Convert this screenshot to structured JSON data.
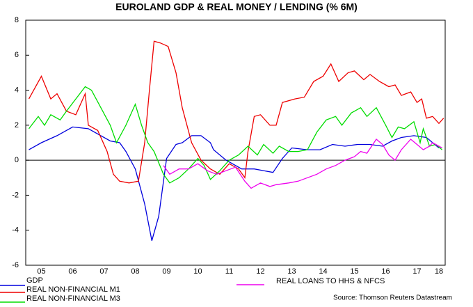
{
  "chart_data": {
    "type": "line",
    "title": "EUROLAND GDP & REAL MONEY / LENDING (% 6M)",
    "source": "Source: Thomson Reuters Datastream",
    "xlim": [
      2005,
      2018.4
    ],
    "xticks": [
      {
        "value": 2005.5,
        "label": "05"
      },
      {
        "value": 2006.5,
        "label": "06"
      },
      {
        "value": 2007.5,
        "label": "07"
      },
      {
        "value": 2008.5,
        "label": "08"
      },
      {
        "value": 2009.5,
        "label": "09"
      },
      {
        "value": 2010.5,
        "label": "10"
      },
      {
        "value": 2011.5,
        "label": "11"
      },
      {
        "value": 2012.5,
        "label": "12"
      },
      {
        "value": 2013.5,
        "label": "13"
      },
      {
        "value": 2014.5,
        "label": "14"
      },
      {
        "value": 2015.5,
        "label": "15"
      },
      {
        "value": 2016.5,
        "label": "16"
      },
      {
        "value": 2017.5,
        "label": "17"
      },
      {
        "value": 2018.2,
        "label": "18"
      }
    ],
    "ylim": [
      -6,
      8
    ],
    "yticks": [
      -6,
      -4,
      -2,
      0,
      2,
      4,
      6,
      8
    ],
    "series": [
      {
        "name": "GDP",
        "color": "#0000dd",
        "x": [
          2005.1,
          2005.5,
          2006.0,
          2006.5,
          2007.0,
          2007.7,
          2008.0,
          2008.2,
          2008.5,
          2008.8,
          2009.03,
          2009.25,
          2009.5,
          2009.8,
          2010.0,
          2010.3,
          2010.6,
          2010.9,
          2011.0,
          2011.4,
          2011.9,
          2012.3,
          2012.9,
          2013.2,
          2013.5,
          2014.0,
          2014.4,
          2014.8,
          2015.2,
          2015.6,
          2016.0,
          2016.4,
          2016.7,
          2017.0,
          2017.4,
          2017.8,
          2018.0,
          2018.2
        ],
        "values": [
          0.6,
          1.0,
          1.4,
          1.9,
          1.8,
          1.1,
          1.0,
          0.5,
          -0.5,
          -2.5,
          -4.6,
          -3.2,
          0.1,
          0.9,
          1.0,
          1.4,
          1.4,
          1.0,
          0.6,
          0.0,
          -0.5,
          -0.5,
          -0.7,
          0.1,
          0.7,
          0.6,
          0.6,
          0.9,
          0.8,
          0.9,
          0.9,
          0.8,
          1.1,
          1.3,
          1.4,
          1.3,
          1.0,
          0.7
        ]
      },
      {
        "name": "REAL NON-FINANCIAL M1",
        "color": "#ee0000",
        "x": [
          2005.1,
          2005.5,
          2005.8,
          2006.0,
          2006.3,
          2006.6,
          2006.9,
          2007.0,
          2007.3,
          2007.6,
          2007.8,
          2008.0,
          2008.3,
          2008.6,
          2008.8,
          2008.95,
          2009.1,
          2009.3,
          2009.55,
          2009.8,
          2010.0,
          2010.3,
          2010.6,
          2010.9,
          2011.2,
          2011.5,
          2011.8,
          2012.0,
          2012.1,
          2012.3,
          2012.5,
          2012.8,
          2013.0,
          2013.2,
          2013.6,
          2013.9,
          2014.2,
          2014.5,
          2014.75,
          2015.0,
          2015.3,
          2015.5,
          2015.8,
          2016.0,
          2016.3,
          2016.6,
          2016.8,
          2017.0,
          2017.3,
          2017.5,
          2017.65,
          2017.8,
          2018.0,
          2018.2,
          2018.35
        ],
        "values": [
          3.5,
          4.8,
          3.5,
          3.8,
          2.8,
          2.6,
          3.8,
          2.0,
          1.7,
          0.5,
          -0.8,
          -1.2,
          -1.3,
          -1.2,
          1.0,
          4.0,
          6.8,
          6.7,
          6.5,
          5.0,
          3.0,
          1.0,
          0.0,
          -0.5,
          -0.8,
          -0.2,
          -0.5,
          -1.0,
          0.5,
          2.5,
          2.6,
          2.0,
          2.0,
          3.3,
          3.5,
          3.6,
          4.5,
          4.8,
          5.5,
          4.5,
          5.0,
          5.1,
          4.6,
          4.9,
          4.5,
          4.2,
          4.3,
          3.7,
          3.9,
          3.3,
          3.5,
          2.4,
          2.5,
          2.1,
          2.4
        ]
      },
      {
        "name": "REAL NON-FINANCIAL M3",
        "color": "#00dd00",
        "x": [
          2005.1,
          2005.4,
          2005.6,
          2005.8,
          2006.1,
          2006.3,
          2006.6,
          2006.9,
          2007.1,
          2007.4,
          2007.7,
          2007.9,
          2008.2,
          2008.5,
          2008.7,
          2008.9,
          2009.1,
          2009.4,
          2009.6,
          2009.9,
          2010.2,
          2010.5,
          2010.7,
          2010.9,
          2011.2,
          2011.5,
          2011.8,
          2012.1,
          2012.4,
          2012.6,
          2012.9,
          2013.1,
          2013.4,
          2013.7,
          2014.0,
          2014.3,
          2014.6,
          2014.9,
          2015.1,
          2015.4,
          2015.7,
          2015.9,
          2016.2,
          2016.5,
          2016.7,
          2016.9,
          2017.1,
          2017.4,
          2017.6,
          2017.7,
          2017.9,
          2018.1,
          2018.3
        ],
        "values": [
          1.8,
          2.5,
          2.0,
          2.6,
          2.3,
          2.8,
          3.5,
          4.2,
          4.0,
          3.0,
          2.0,
          1.0,
          2.0,
          3.2,
          2.0,
          1.0,
          0.5,
          -0.8,
          -1.3,
          -1.0,
          -0.5,
          0.1,
          -0.3,
          -1.1,
          -0.6,
          0.0,
          0.3,
          0.8,
          0.3,
          0.9,
          0.4,
          0.8,
          0.5,
          0.5,
          0.6,
          1.6,
          2.3,
          2.5,
          2.0,
          2.7,
          3.0,
          2.5,
          3.0,
          2.0,
          1.3,
          1.9,
          1.8,
          2.2,
          1.0,
          1.8,
          0.8,
          0.9,
          0.6
        ]
      },
      {
        "name": "REAL LOANS TO HHS & NFCS",
        "color": "#ee00ee",
        "x": [
          2009.4,
          2009.6,
          2009.9,
          2010.2,
          2010.5,
          2010.8,
          2011.1,
          2011.4,
          2011.7,
          2012.0,
          2012.2,
          2012.5,
          2012.8,
          2013.0,
          2013.4,
          2013.7,
          2014.0,
          2014.3,
          2014.6,
          2014.9,
          2015.2,
          2015.5,
          2015.7,
          2015.9,
          2016.2,
          2016.4,
          2016.6,
          2016.8,
          2017.0,
          2017.3,
          2017.5,
          2017.7,
          2017.9,
          2018.0,
          2018.3
        ],
        "values": [
          -0.3,
          -0.8,
          -0.5,
          -0.5,
          -0.2,
          -0.6,
          -0.8,
          -0.6,
          -0.4,
          -1.2,
          -1.6,
          -1.3,
          -1.5,
          -1.4,
          -1.3,
          -1.2,
          -1.0,
          -0.8,
          -0.5,
          -0.3,
          0.0,
          0.2,
          0.5,
          0.4,
          1.2,
          0.9,
          0.3,
          0.0,
          0.6,
          1.2,
          0.9,
          0.6,
          0.8,
          1.0,
          0.7
        ]
      }
    ]
  }
}
